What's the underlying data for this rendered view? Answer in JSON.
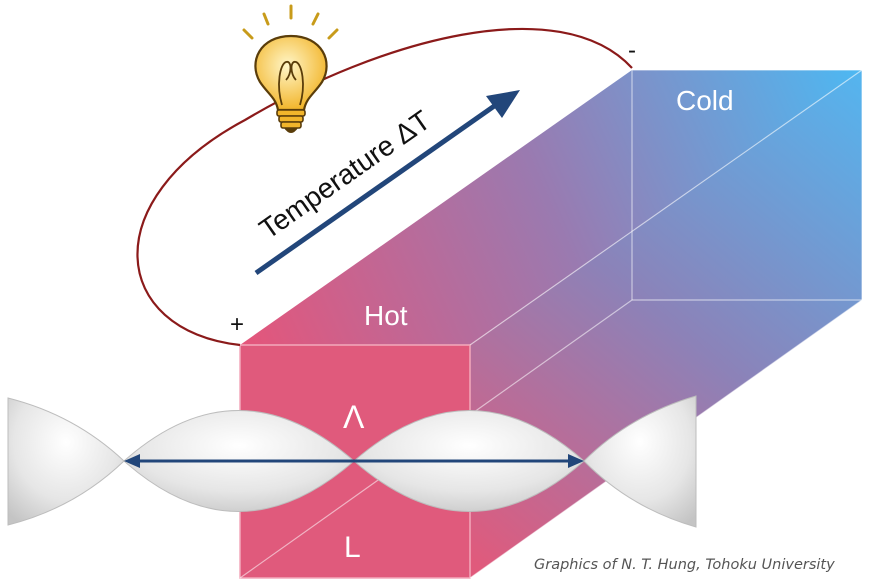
{
  "labels": {
    "hot": "Hot",
    "cold": "Cold",
    "temperature": "Temperature ΔT",
    "lambda": "Λ",
    "length": "L",
    "plus": "+",
    "minus": "-",
    "credit": "Graphics of N. T. Hung, Tohoku University"
  },
  "colors": {
    "hot": "#e05a7c",
    "cold": "#4db6f0",
    "arrow": "#22467a",
    "wire": "#8b1a1a",
    "bulb": "#f6c343"
  },
  "icons": {
    "bulb": "light-bulb-icon"
  }
}
